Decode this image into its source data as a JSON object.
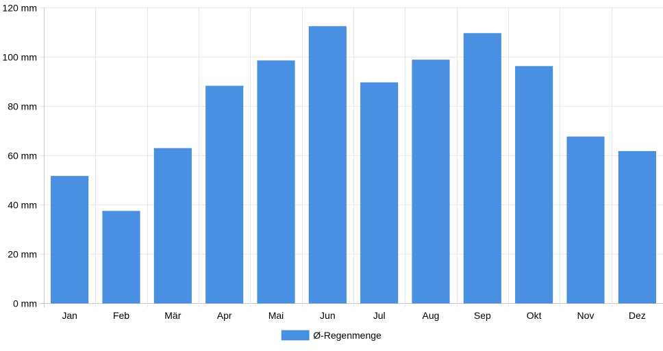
{
  "chart_data": {
    "type": "bar",
    "categories": [
      "Jan",
      "Feb",
      "Mär",
      "Apr",
      "Mai",
      "Jun",
      "Jul",
      "Aug",
      "Sep",
      "Okt",
      "Nov",
      "Dez"
    ],
    "series": [
      {
        "name": "Ø-Regenmenge",
        "values": [
          51.5,
          37.3,
          62.8,
          88.1,
          98.4,
          112.3,
          89.5,
          98.7,
          109.5,
          96.1,
          67.5,
          61.6
        ],
        "color": "#4a90e2"
      }
    ],
    "title": "",
    "xlabel": "",
    "ylabel": "",
    "ylim": [
      0,
      120
    ],
    "y_ticks": [
      0,
      20,
      40,
      60,
      80,
      100,
      120
    ],
    "y_tick_suffix": " mm",
    "grid": true,
    "legend_position": "bottom"
  }
}
